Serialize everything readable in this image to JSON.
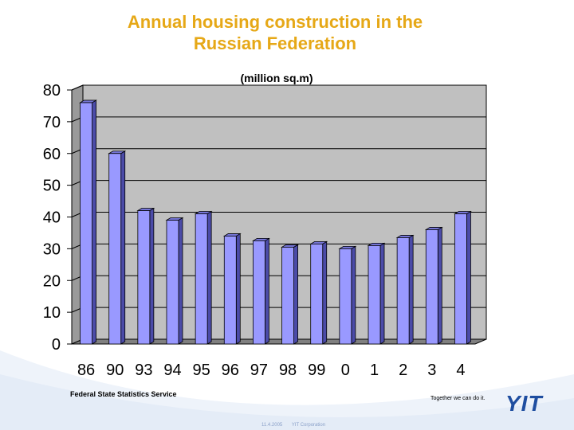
{
  "slide": {
    "title_line1": "Annual housing construction in the",
    "title_line2": "Russian Federation",
    "source": "Federal State Statistics Service",
    "slogan": "Together we can do it.",
    "date": "11.4.2005",
    "company": "YIT Corporation",
    "logo_text": "YIT"
  },
  "colors": {
    "title": "#E6A817",
    "bar_front": "#9999FF",
    "bar_side": "#4B4BA8",
    "bar_top": "#7575D6",
    "plot_back": "#C0C0C0",
    "plot_floor": "#808080",
    "logo": "#1F4EA0"
  },
  "chart_data": {
    "type": "bar",
    "title": "",
    "subtitle": "(million sq.m)",
    "categories": [
      "86",
      "90",
      "93",
      "94",
      "95",
      "96",
      "97",
      "98",
      "99",
      "0",
      "1",
      "2",
      "3",
      "4"
    ],
    "values": [
      76,
      60,
      42,
      39,
      41,
      34,
      32.5,
      30.5,
      31.5,
      30,
      31,
      33.5,
      36,
      41
    ],
    "ylim": [
      0,
      80
    ],
    "yticks": [
      0,
      10,
      20,
      30,
      40,
      50,
      60,
      70,
      80
    ],
    "grid": true,
    "xlabel": "",
    "ylabel": ""
  }
}
